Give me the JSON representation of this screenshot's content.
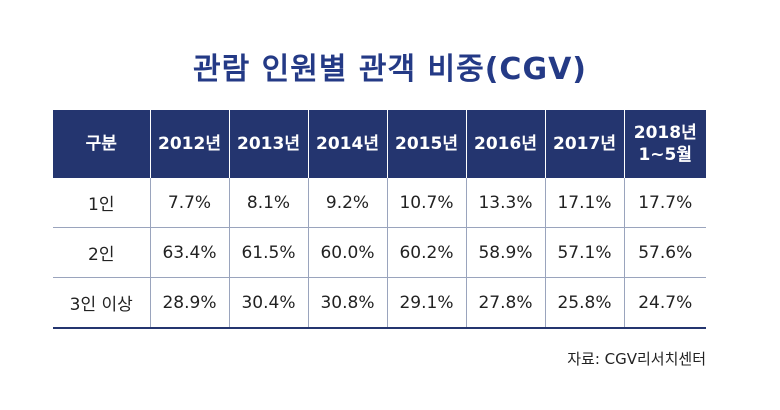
{
  "title": "관람 인원별 관객 비중(CGV)",
  "table": {
    "headers": [
      "구분",
      "2012년",
      "2013년",
      "2014년",
      "2015년",
      "2016년",
      "2017년",
      "2018년\n1~5월"
    ],
    "rows": [
      [
        "1인",
        "7.7%",
        "8.1%",
        "9.2%",
        "10.7%",
        "13.3%",
        "17.1%",
        "17.7%"
      ],
      [
        "2인",
        "63.4%",
        "61.5%",
        "60.0%",
        "60.2%",
        "58.9%",
        "57.1%",
        "57.6%"
      ],
      [
        "3인 이상",
        "28.9%",
        "30.4%",
        "30.8%",
        "29.1%",
        "27.8%",
        "25.8%",
        "24.7%"
      ]
    ]
  },
  "source": "자료: CGV리서치센터"
}
